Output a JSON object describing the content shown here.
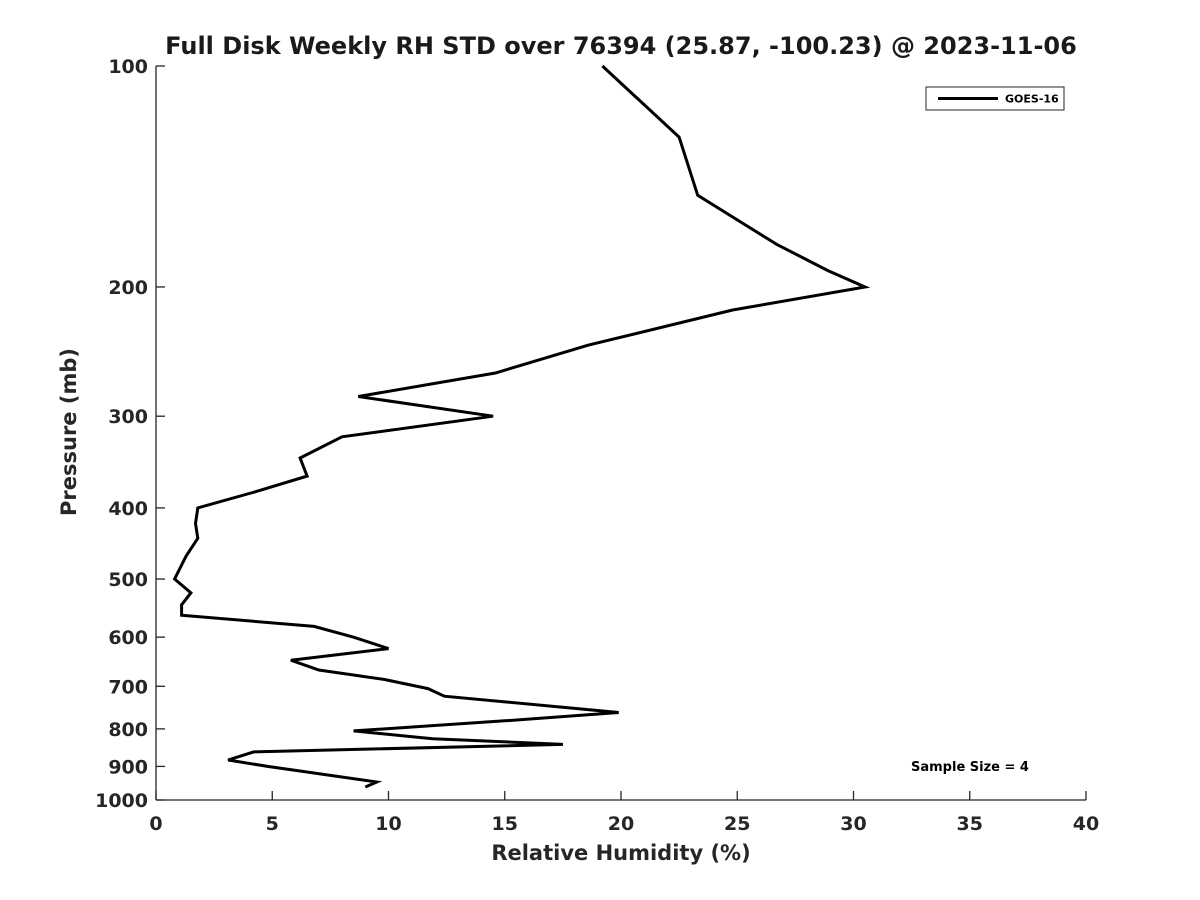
{
  "chart_data": {
    "type": "line",
    "title": "Full Disk Weekly RH STD over 76394 (25.87, -100.23) @ 2023-11-06",
    "xlabel": "Relative Humidity (%)",
    "ylabel": "Pressure (mb)",
    "xlim": [
      0,
      40
    ],
    "ylim": [
      100,
      1000
    ],
    "y_scale": "log",
    "y_reversed": true,
    "x_ticks": [
      0,
      5,
      10,
      15,
      20,
      25,
      30,
      35,
      40
    ],
    "y_ticks": [
      100,
      200,
      300,
      400,
      500,
      600,
      700,
      800,
      900,
      1000
    ],
    "grid": false,
    "legend_position": "top-right",
    "annotation": "Sample Size = 4",
    "series": [
      {
        "name": "GOES-16",
        "color": "#000000",
        "points": [
          [
            19.2,
            100
          ],
          [
            22.5,
            125
          ],
          [
            23.3,
            150
          ],
          [
            26.7,
            175
          ],
          [
            28.9,
            190
          ],
          [
            30.5,
            200
          ],
          [
            24.8,
            215
          ],
          [
            18.6,
            240
          ],
          [
            14.6,
            262
          ],
          [
            8.7,
            282
          ],
          [
            14.5,
            300
          ],
          [
            8.0,
            320
          ],
          [
            6.2,
            342
          ],
          [
            6.5,
            362
          ],
          [
            4.3,
            380
          ],
          [
            1.8,
            400
          ],
          [
            1.7,
            420
          ],
          [
            1.8,
            440
          ],
          [
            1.3,
            465
          ],
          [
            0.8,
            500
          ],
          [
            1.5,
            522
          ],
          [
            1.1,
            542
          ],
          [
            1.1,
            560
          ],
          [
            6.8,
            580
          ],
          [
            8.5,
            600
          ],
          [
            10.0,
            622
          ],
          [
            5.8,
            645
          ],
          [
            7.0,
            665
          ],
          [
            9.8,
            685
          ],
          [
            11.7,
            705
          ],
          [
            12.4,
            722
          ],
          [
            19.9,
            760
          ],
          [
            15.0,
            780
          ],
          [
            8.5,
            805
          ],
          [
            11.9,
            825
          ],
          [
            17.5,
            840
          ],
          [
            4.2,
            860
          ],
          [
            3.1,
            882
          ],
          [
            4.8,
            900
          ],
          [
            9.5,
            945
          ],
          [
            9.0,
            960
          ]
        ]
      }
    ]
  }
}
